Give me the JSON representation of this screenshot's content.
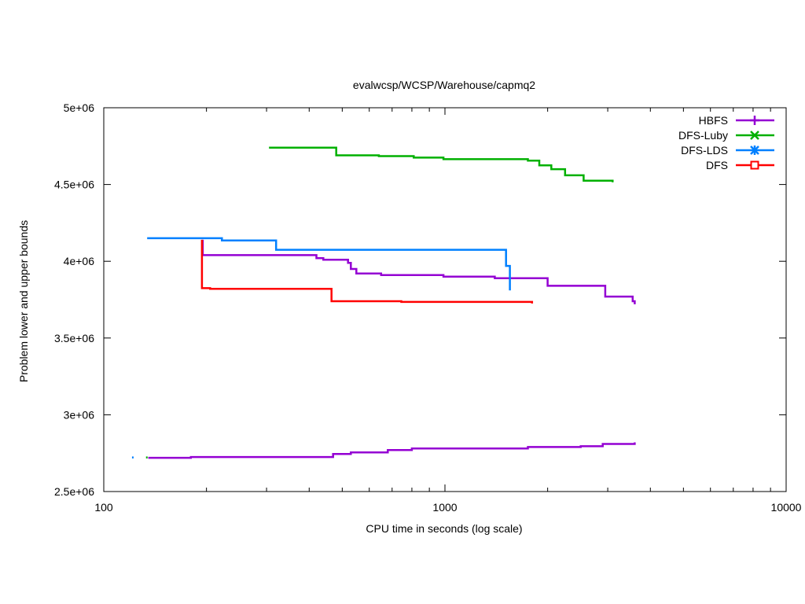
{
  "chart_data": {
    "type": "line",
    "title": "evalwcsp/WCSP/Warehouse/capmq2",
    "xlabel": "CPU time in seconds (log scale)",
    "ylabel": "Problem lower and upper bounds",
    "xscale": "log",
    "xlim": [
      100,
      10000
    ],
    "ylim": [
      2500000,
      5000000
    ],
    "x_ticks": [
      100,
      1000,
      10000
    ],
    "x_tick_labels": [
      "100",
      "1000",
      "10000"
    ],
    "y_ticks": [
      2500000,
      3000000,
      3500000,
      4000000,
      4500000,
      5000000
    ],
    "y_tick_labels": [
      "2.5e+06",
      "3e+06",
      "3.5e+06",
      "4e+06",
      "4.5e+06",
      "5e+06"
    ],
    "grid": false,
    "legend_position": "top-right",
    "series": [
      {
        "name": "HBFS",
        "color": "#9400d3",
        "marker": "plus",
        "upper": [
          [
            195,
            4140000
          ],
          [
            195,
            4040000
          ],
          [
            410,
            4040000
          ],
          [
            420,
            4020000
          ],
          [
            440,
            4010000
          ],
          [
            510,
            4010000
          ],
          [
            520,
            3990000
          ],
          [
            530,
            3950000
          ],
          [
            550,
            3920000
          ],
          [
            650,
            3910000
          ],
          [
            990,
            3900000
          ],
          [
            1400,
            3890000
          ],
          [
            2000,
            3840000
          ],
          [
            2950,
            3840000
          ],
          [
            2950,
            3770000
          ],
          [
            3500,
            3770000
          ],
          [
            3550,
            3740000
          ],
          [
            3600,
            3720000
          ]
        ],
        "lower": [
          [
            135,
            2720000
          ],
          [
            180,
            2725000
          ],
          [
            470,
            2725000
          ],
          [
            470,
            2745000
          ],
          [
            530,
            2755000
          ],
          [
            680,
            2770000
          ],
          [
            800,
            2780000
          ],
          [
            1750,
            2780000
          ],
          [
            1750,
            2790000
          ],
          [
            2500,
            2795000
          ],
          [
            2900,
            2810000
          ],
          [
            3600,
            2820000
          ]
        ]
      },
      {
        "name": "DFS-Luby",
        "color": "#00b000",
        "marker": "cross",
        "upper": [
          [
            305,
            4740000
          ],
          [
            480,
            4740000
          ],
          [
            480,
            4690000
          ],
          [
            640,
            4685000
          ],
          [
            810,
            4675000
          ],
          [
            990,
            4665000
          ],
          [
            1750,
            4655000
          ],
          [
            1890,
            4625000
          ],
          [
            2050,
            4600000
          ],
          [
            2250,
            4560000
          ],
          [
            2550,
            4525000
          ],
          [
            3100,
            4515000
          ]
        ],
        "lower": [
          [
            133,
            2722000
          ]
        ]
      },
      {
        "name": "DFS-LDS",
        "color": "#0080ff",
        "marker": "asterisk",
        "upper": [
          [
            134,
            4150000
          ],
          [
            222,
            4150000
          ],
          [
            222,
            4135000
          ],
          [
            320,
            4135000
          ],
          [
            320,
            4075000
          ],
          [
            1510,
            4075000
          ],
          [
            1510,
            3970000
          ],
          [
            1550,
            3970000
          ],
          [
            1550,
            3810000
          ]
        ],
        "lower": [
          [
            121,
            2722000
          ]
        ]
      },
      {
        "name": "DFS",
        "color": "#ff0000",
        "marker": "square",
        "upper": [
          [
            194,
            4140000
          ],
          [
            194,
            3825000
          ],
          [
            205,
            3820000
          ],
          [
            460,
            3820000
          ],
          [
            465,
            3740000
          ],
          [
            745,
            3735000
          ],
          [
            1800,
            3725000
          ]
        ],
        "lower": []
      }
    ]
  }
}
